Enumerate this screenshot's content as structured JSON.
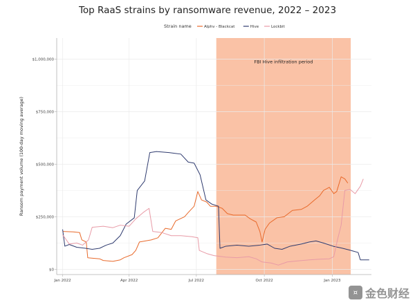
{
  "chart_data": {
    "type": "line",
    "title": "Top RaaS strains by ransomware revenue, 2022 – 2023",
    "ylabel": "Ransom payment volume (100-day moving average)",
    "xlabel": "",
    "legend": {
      "title": "Strain name",
      "position": "top"
    },
    "x_range": [
      "2021-12-24",
      "2023-02-23"
    ],
    "ylim": [
      -25000,
      1100000
    ],
    "x_ticks": [
      {
        "date": "2022-01-01",
        "label": "Jan 2022"
      },
      {
        "date": "2022-04-01",
        "label": "Apr 2022"
      },
      {
        "date": "2022-07-01",
        "label": "Jul 2022"
      },
      {
        "date": "2022-10-01",
        "label": "Oct 2022"
      },
      {
        "date": "2023-01-01",
        "label": "Jan 2023"
      }
    ],
    "y_ticks": [
      {
        "value": 0,
        "label": "$0"
      },
      {
        "value": 250000,
        "label": "$250,000"
      },
      {
        "value": 500000,
        "label": "$500,000"
      },
      {
        "value": 750000,
        "label": "$750,000"
      },
      {
        "value": 1000000,
        "label": "$1,000,000"
      }
    ],
    "grid": true,
    "shaded_region": {
      "label": "FBI Hive infiltration period",
      "start": "2022-07-28",
      "end": "2023-01-26",
      "color": "#f9b797"
    },
    "series": [
      {
        "name": "Alphv - Blackcat",
        "color": "#e8692a",
        "points": [
          [
            "2022-01-01",
            180000
          ],
          [
            "2022-01-15",
            178000
          ],
          [
            "2022-01-24",
            175000
          ],
          [
            "2022-01-27",
            140000
          ],
          [
            "2022-02-02",
            130000
          ],
          [
            "2022-02-04",
            55000
          ],
          [
            "2022-02-20",
            50000
          ],
          [
            "2022-02-25",
            42000
          ],
          [
            "2022-03-10",
            38000
          ],
          [
            "2022-03-20",
            45000
          ],
          [
            "2022-03-25",
            55000
          ],
          [
            "2022-04-05",
            70000
          ],
          [
            "2022-04-10",
            90000
          ],
          [
            "2022-04-15",
            130000
          ],
          [
            "2022-05-01",
            140000
          ],
          [
            "2022-05-10",
            150000
          ],
          [
            "2022-05-20",
            195000
          ],
          [
            "2022-05-28",
            190000
          ],
          [
            "2022-06-03",
            230000
          ],
          [
            "2022-06-15",
            250000
          ],
          [
            "2022-06-20",
            270000
          ],
          [
            "2022-06-28",
            300000
          ],
          [
            "2022-07-03",
            370000
          ],
          [
            "2022-07-08",
            330000
          ],
          [
            "2022-07-15",
            320000
          ],
          [
            "2022-07-20",
            300000
          ],
          [
            "2022-07-28",
            300000
          ],
          [
            "2022-08-05",
            290000
          ],
          [
            "2022-08-12",
            265000
          ],
          [
            "2022-08-20",
            258000
          ],
          [
            "2022-09-05",
            258000
          ],
          [
            "2022-09-12",
            240000
          ],
          [
            "2022-09-20",
            225000
          ],
          [
            "2022-09-25",
            180000
          ],
          [
            "2022-09-28",
            130000
          ],
          [
            "2022-10-02",
            190000
          ],
          [
            "2022-10-08",
            220000
          ],
          [
            "2022-10-18",
            245000
          ],
          [
            "2022-10-28",
            250000
          ],
          [
            "2022-11-08",
            280000
          ],
          [
            "2022-11-20",
            285000
          ],
          [
            "2022-11-28",
            300000
          ],
          [
            "2022-12-08",
            330000
          ],
          [
            "2022-12-15",
            350000
          ],
          [
            "2022-12-20",
            375000
          ],
          [
            "2022-12-28",
            390000
          ],
          [
            "2023-01-03",
            360000
          ],
          [
            "2023-01-07",
            370000
          ],
          [
            "2023-01-13",
            440000
          ],
          [
            "2023-01-18",
            430000
          ],
          [
            "2023-01-22",
            410000
          ]
        ]
      },
      {
        "name": "Hive",
        "color": "#2e3a6e",
        "points": [
          [
            "2022-01-01",
            190000
          ],
          [
            "2022-01-04",
            110000
          ],
          [
            "2022-01-10",
            118000
          ],
          [
            "2022-01-20",
            105000
          ],
          [
            "2022-02-01",
            100000
          ],
          [
            "2022-02-10",
            95000
          ],
          [
            "2022-02-20",
            100000
          ],
          [
            "2022-03-01",
            115000
          ],
          [
            "2022-03-10",
            125000
          ],
          [
            "2022-03-20",
            160000
          ],
          [
            "2022-03-28",
            215000
          ],
          [
            "2022-04-08",
            245000
          ],
          [
            "2022-04-12",
            375000
          ],
          [
            "2022-04-22",
            420000
          ],
          [
            "2022-04-29",
            555000
          ],
          [
            "2022-05-08",
            560000
          ],
          [
            "2022-05-25",
            555000
          ],
          [
            "2022-06-10",
            548000
          ],
          [
            "2022-06-20",
            510000
          ],
          [
            "2022-06-28",
            505000
          ],
          [
            "2022-07-06",
            450000
          ],
          [
            "2022-07-14",
            330000
          ],
          [
            "2022-07-22",
            310000
          ],
          [
            "2022-07-31",
            300000
          ],
          [
            "2022-08-02",
            100000
          ],
          [
            "2022-08-10",
            110000
          ],
          [
            "2022-08-25",
            115000
          ],
          [
            "2022-09-10",
            110000
          ],
          [
            "2022-09-25",
            115000
          ],
          [
            "2022-10-05",
            120000
          ],
          [
            "2022-10-15",
            100000
          ],
          [
            "2022-10-25",
            95000
          ],
          [
            "2022-11-05",
            110000
          ],
          [
            "2022-11-20",
            120000
          ],
          [
            "2022-12-01",
            130000
          ],
          [
            "2022-12-10",
            135000
          ],
          [
            "2022-12-20",
            125000
          ],
          [
            "2023-01-02",
            110000
          ],
          [
            "2023-01-15",
            100000
          ],
          [
            "2023-01-26",
            90000
          ],
          [
            "2023-02-05",
            80000
          ],
          [
            "2023-02-08",
            45000
          ],
          [
            "2023-02-20",
            45000
          ]
        ]
      },
      {
        "name": "Lockbit",
        "color": "#e89aa6",
        "points": [
          [
            "2022-01-01",
            165000
          ],
          [
            "2022-01-10",
            120000
          ],
          [
            "2022-01-20",
            125000
          ],
          [
            "2022-01-28",
            115000
          ],
          [
            "2022-02-05",
            140000
          ],
          [
            "2022-02-10",
            200000
          ],
          [
            "2022-02-25",
            205000
          ],
          [
            "2022-03-10",
            198000
          ],
          [
            "2022-03-20",
            210000
          ],
          [
            "2022-04-01",
            205000
          ],
          [
            "2022-04-10",
            240000
          ],
          [
            "2022-04-20",
            270000
          ],
          [
            "2022-04-28",
            290000
          ],
          [
            "2022-05-03",
            180000
          ],
          [
            "2022-05-15",
            175000
          ],
          [
            "2022-05-28",
            160000
          ],
          [
            "2022-06-10",
            160000
          ],
          [
            "2022-06-25",
            155000
          ],
          [
            "2022-07-03",
            150000
          ],
          [
            "2022-07-05",
            90000
          ],
          [
            "2022-07-15",
            75000
          ],
          [
            "2022-07-25",
            65000
          ],
          [
            "2022-08-10",
            58000
          ],
          [
            "2022-08-25",
            55000
          ],
          [
            "2022-09-10",
            60000
          ],
          [
            "2022-09-20",
            50000
          ],
          [
            "2022-09-28",
            35000
          ],
          [
            "2022-10-10",
            30000
          ],
          [
            "2022-10-20",
            20000
          ],
          [
            "2022-11-01",
            35000
          ],
          [
            "2022-11-15",
            40000
          ],
          [
            "2022-12-01",
            45000
          ],
          [
            "2022-12-15",
            48000
          ],
          [
            "2022-12-28",
            50000
          ],
          [
            "2023-01-03",
            60000
          ],
          [
            "2023-01-08",
            140000
          ],
          [
            "2023-01-13",
            210000
          ],
          [
            "2023-01-18",
            375000
          ],
          [
            "2023-01-25",
            380000
          ],
          [
            "2023-02-01",
            360000
          ],
          [
            "2023-02-08",
            395000
          ],
          [
            "2023-02-12",
            430000
          ]
        ]
      }
    ]
  },
  "watermark": {
    "text": "金色财经",
    "logo_char": "¤"
  }
}
